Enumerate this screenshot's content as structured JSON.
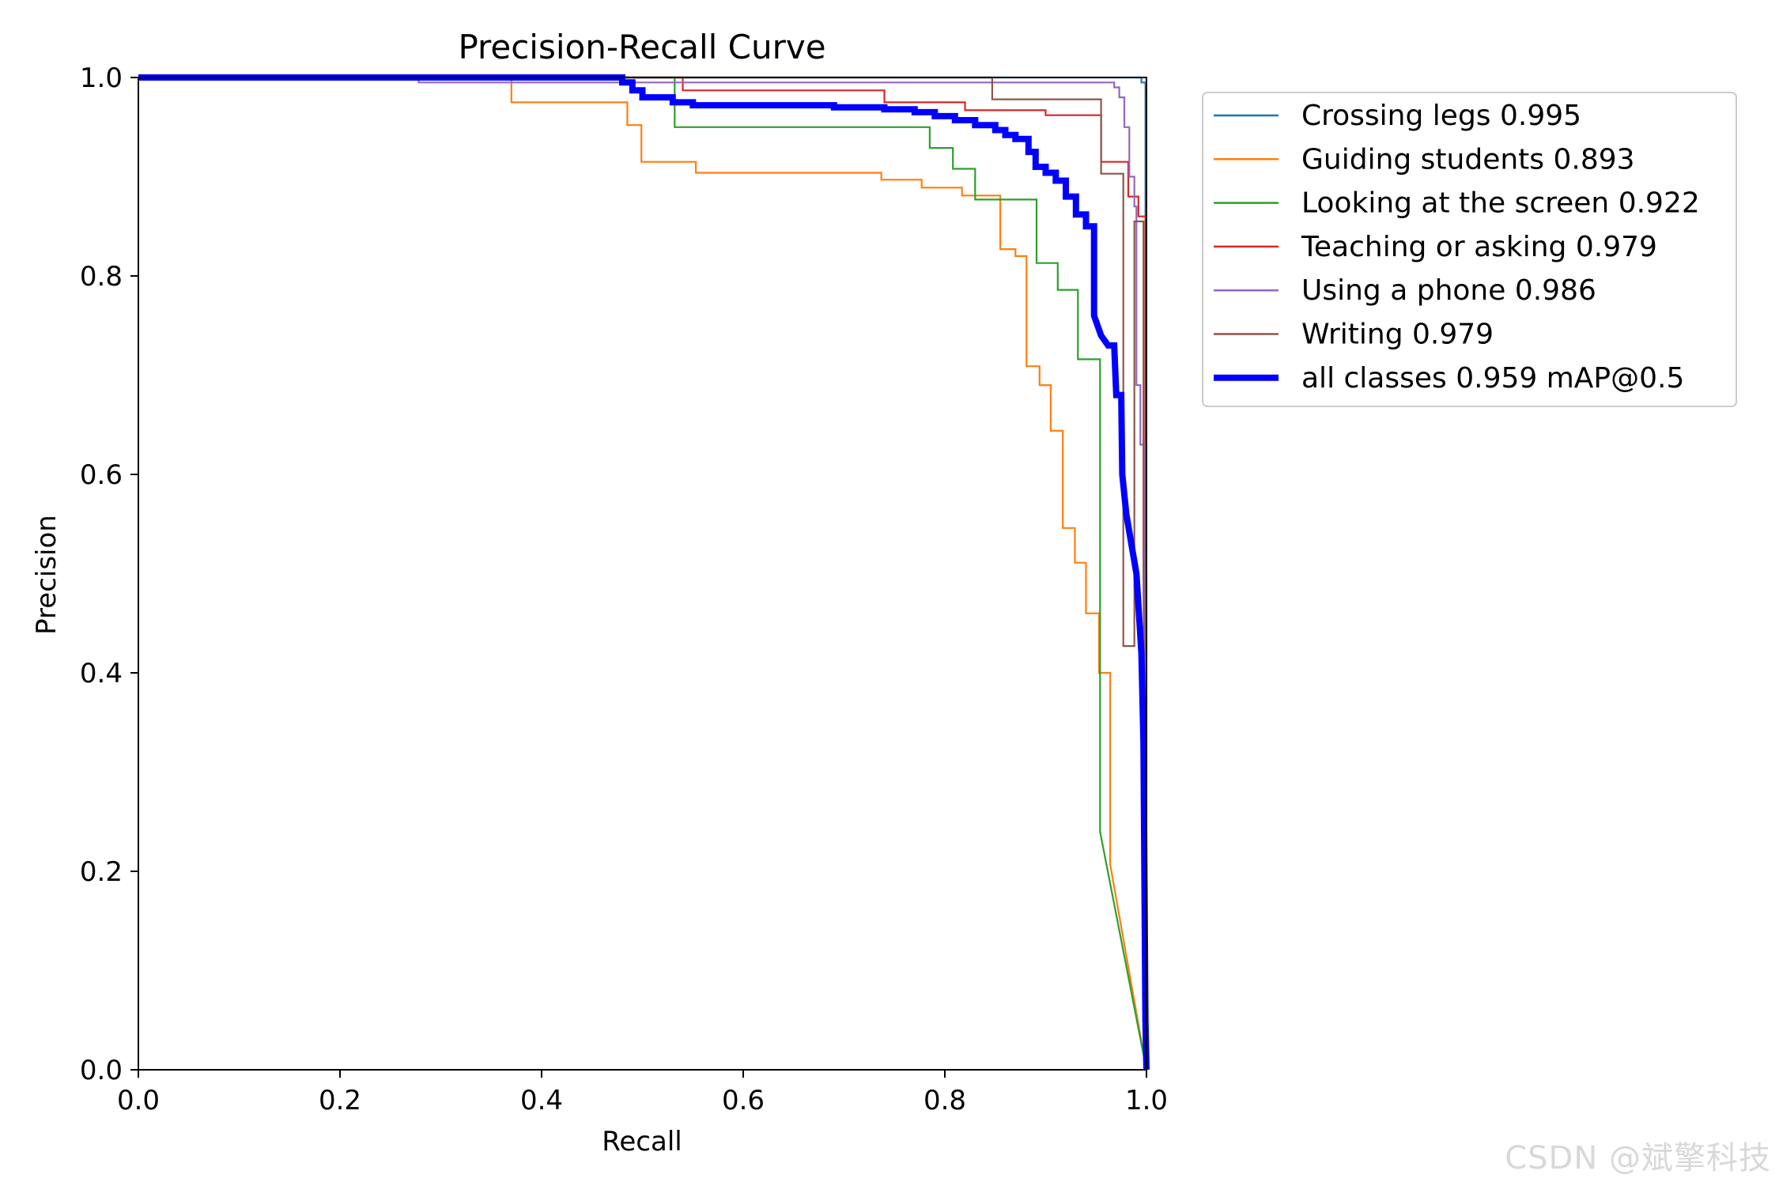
{
  "chart_data": {
    "type": "line",
    "title": "Precision-Recall Curve",
    "xlabel": "Recall",
    "ylabel": "Precision",
    "xlim": [
      0,
      1
    ],
    "ylim": [
      0,
      1
    ],
    "xticks": [
      "0.0",
      "0.2",
      "0.4",
      "0.6",
      "0.8",
      "1.0"
    ],
    "yticks": [
      "0.0",
      "0.2",
      "0.4",
      "0.6",
      "0.8",
      "1.0"
    ],
    "grid": false,
    "legend_position": "outside-right-top",
    "series": [
      {
        "name": "Crossing legs 0.995",
        "color": "#1f77b4",
        "points": [
          [
            0,
            1
          ],
          [
            0.995,
            1
          ],
          [
            0.995,
            0.995
          ],
          [
            0.999,
            0.995
          ],
          [
            0.999,
            0.5
          ],
          [
            1.0,
            0.5
          ],
          [
            1.0,
            0.0
          ]
        ]
      },
      {
        "name": "Guiding students 0.893",
        "color": "#ff7f0e",
        "points": [
          [
            0,
            1
          ],
          [
            0.37,
            1
          ],
          [
            0.37,
            0.975
          ],
          [
            0.485,
            0.975
          ],
          [
            0.485,
            0.952
          ],
          [
            0.499,
            0.952
          ],
          [
            0.499,
            0.915
          ],
          [
            0.553,
            0.915
          ],
          [
            0.553,
            0.904
          ],
          [
            0.737,
            0.904
          ],
          [
            0.737,
            0.897
          ],
          [
            0.777,
            0.897
          ],
          [
            0.777,
            0.889
          ],
          [
            0.817,
            0.889
          ],
          [
            0.817,
            0.881
          ],
          [
            0.855,
            0.881
          ],
          [
            0.855,
            0.827
          ],
          [
            0.87,
            0.827
          ],
          [
            0.87,
            0.82
          ],
          [
            0.881,
            0.82
          ],
          [
            0.881,
            0.709
          ],
          [
            0.894,
            0.709
          ],
          [
            0.894,
            0.69
          ],
          [
            0.905,
            0.69
          ],
          [
            0.905,
            0.644
          ],
          [
            0.917,
            0.644
          ],
          [
            0.917,
            0.546
          ],
          [
            0.929,
            0.546
          ],
          [
            0.929,
            0.511
          ],
          [
            0.94,
            0.511
          ],
          [
            0.94,
            0.46
          ],
          [
            0.953,
            0.46
          ],
          [
            0.953,
            0.4
          ],
          [
            0.964,
            0.4
          ],
          [
            0.964,
            0.207
          ],
          [
            1.0,
            0.0
          ]
        ]
      },
      {
        "name": "Looking at the screen 0.922",
        "color": "#2ca02c",
        "points": [
          [
            0,
            1
          ],
          [
            0.532,
            1
          ],
          [
            0.532,
            0.95
          ],
          [
            0.785,
            0.95
          ],
          [
            0.785,
            0.929
          ],
          [
            0.808,
            0.929
          ],
          [
            0.808,
            0.908
          ],
          [
            0.83,
            0.908
          ],
          [
            0.83,
            0.877
          ],
          [
            0.891,
            0.877
          ],
          [
            0.891,
            0.813
          ],
          [
            0.912,
            0.813
          ],
          [
            0.912,
            0.786
          ],
          [
            0.932,
            0.786
          ],
          [
            0.932,
            0.716
          ],
          [
            0.954,
            0.716
          ],
          [
            0.954,
            0.24
          ],
          [
            1.0,
            0.0
          ]
        ]
      },
      {
        "name": "Teaching or asking 0.979",
        "color": "#d62728",
        "points": [
          [
            0,
            1
          ],
          [
            0.54,
            1
          ],
          [
            0.54,
            0.987
          ],
          [
            0.74,
            0.987
          ],
          [
            0.74,
            0.975
          ],
          [
            0.82,
            0.975
          ],
          [
            0.82,
            0.967
          ],
          [
            0.9,
            0.967
          ],
          [
            0.9,
            0.962
          ],
          [
            0.955,
            0.962
          ],
          [
            0.955,
            0.915
          ],
          [
            0.982,
            0.915
          ],
          [
            0.982,
            0.88
          ],
          [
            0.992,
            0.88
          ],
          [
            0.992,
            0.86
          ],
          [
            0.999,
            0.86
          ],
          [
            0.999,
            0.62
          ],
          [
            1.0,
            0.0
          ]
        ]
      },
      {
        "name": "Using a phone 0.986",
        "color": "#9467bd",
        "points": [
          [
            0,
            0.998
          ],
          [
            0.278,
            0.998
          ],
          [
            0.278,
            0.995
          ],
          [
            0.968,
            0.995
          ],
          [
            0.968,
            0.99
          ],
          [
            0.973,
            0.99
          ],
          [
            0.973,
            0.98
          ],
          [
            0.978,
            0.98
          ],
          [
            0.978,
            0.95
          ],
          [
            0.983,
            0.95
          ],
          [
            0.983,
            0.9
          ],
          [
            0.988,
            0.9
          ],
          [
            0.988,
            0.87
          ],
          [
            0.99,
            0.87
          ],
          [
            0.99,
            0.69
          ],
          [
            0.994,
            0.69
          ],
          [
            0.994,
            0.63
          ],
          [
            0.998,
            0.63
          ],
          [
            0.998,
            0.5
          ],
          [
            1.0,
            0.0
          ]
        ]
      },
      {
        "name": "Writing 0.979",
        "color": "#8c564b",
        "points": [
          [
            0,
            1
          ],
          [
            0.847,
            1
          ],
          [
            0.847,
            0.978
          ],
          [
            0.955,
            0.978
          ],
          [
            0.955,
            0.903
          ],
          [
            0.977,
            0.903
          ],
          [
            0.977,
            0.427
          ],
          [
            0.988,
            0.427
          ],
          [
            0.988,
            0.855
          ],
          [
            0.997,
            0.855
          ],
          [
            0.997,
            0.5
          ],
          [
            1.0,
            0.0
          ]
        ]
      },
      {
        "name": "all classes 0.959 mAP@0.5",
        "color": "#0000ff",
        "thick": true,
        "points": [
          [
            0,
            1
          ],
          [
            0.48,
            1
          ],
          [
            0.48,
            0.995
          ],
          [
            0.49,
            0.995
          ],
          [
            0.49,
            0.987
          ],
          [
            0.5,
            0.987
          ],
          [
            0.5,
            0.98
          ],
          [
            0.53,
            0.98
          ],
          [
            0.53,
            0.975
          ],
          [
            0.55,
            0.975
          ],
          [
            0.55,
            0.972
          ],
          [
            0.69,
            0.972
          ],
          [
            0.69,
            0.97
          ],
          [
            0.74,
            0.97
          ],
          [
            0.74,
            0.968
          ],
          [
            0.77,
            0.968
          ],
          [
            0.77,
            0.965
          ],
          [
            0.79,
            0.965
          ],
          [
            0.79,
            0.961
          ],
          [
            0.81,
            0.961
          ],
          [
            0.81,
            0.957
          ],
          [
            0.83,
            0.957
          ],
          [
            0.83,
            0.952
          ],
          [
            0.85,
            0.952
          ],
          [
            0.85,
            0.947
          ],
          [
            0.86,
            0.947
          ],
          [
            0.86,
            0.942
          ],
          [
            0.87,
            0.942
          ],
          [
            0.87,
            0.938
          ],
          [
            0.883,
            0.938
          ],
          [
            0.883,
            0.925
          ],
          [
            0.89,
            0.925
          ],
          [
            0.89,
            0.91
          ],
          [
            0.9,
            0.91
          ],
          [
            0.9,
            0.904
          ],
          [
            0.91,
            0.904
          ],
          [
            0.91,
            0.896
          ],
          [
            0.92,
            0.896
          ],
          [
            0.92,
            0.88
          ],
          [
            0.93,
            0.88
          ],
          [
            0.93,
            0.862
          ],
          [
            0.94,
            0.862
          ],
          [
            0.94,
            0.85
          ],
          [
            0.948,
            0.85
          ],
          [
            0.948,
            0.76
          ],
          [
            0.955,
            0.74
          ],
          [
            0.962,
            0.73
          ],
          [
            0.968,
            0.73
          ],
          [
            0.97,
            0.68
          ],
          [
            0.975,
            0.68
          ],
          [
            0.976,
            0.6
          ],
          [
            0.98,
            0.56
          ],
          [
            0.985,
            0.53
          ],
          [
            0.99,
            0.5
          ],
          [
            0.995,
            0.42
          ],
          [
            0.997,
            0.33
          ],
          [
            0.999,
            0.05
          ],
          [
            1.0,
            0.0
          ]
        ]
      }
    ]
  },
  "watermark": "CSDN @斌擎科技"
}
